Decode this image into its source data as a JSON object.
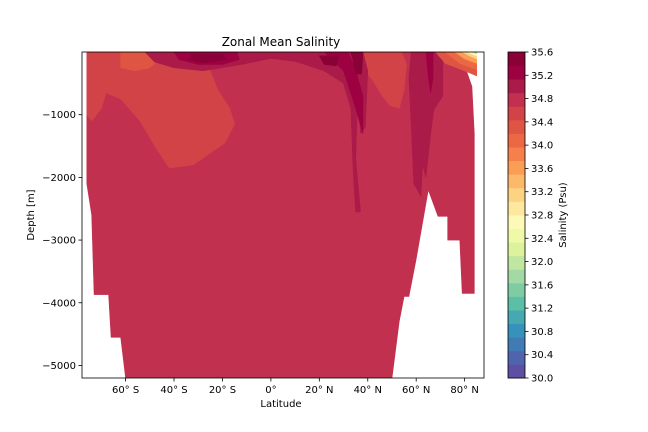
{
  "chart_data": {
    "type": "heatmap",
    "title": "Zonal Mean Salinity",
    "xlabel": "Latitude",
    "ylabel": "Depth [m]",
    "xlim": [
      -78,
      88
    ],
    "ylim": [
      -5200,
      0
    ],
    "x_ticks": [
      {
        "value": -60,
        "label": "60° S"
      },
      {
        "value": -40,
        "label": "40° S"
      },
      {
        "value": -20,
        "label": "20° S"
      },
      {
        "value": 0,
        "label": "0°"
      },
      {
        "value": 20,
        "label": "20° N"
      },
      {
        "value": 40,
        "label": "40° N"
      },
      {
        "value": 60,
        "label": "60° N"
      },
      {
        "value": 80,
        "label": "80° N"
      }
    ],
    "y_ticks": [
      {
        "value": -1000,
        "label": "−1000"
      },
      {
        "value": -2000,
        "label": "−2000"
      },
      {
        "value": -3000,
        "label": "−3000"
      },
      {
        "value": -4000,
        "label": "−4000"
      },
      {
        "value": -5000,
        "label": "−5000"
      }
    ],
    "colorbar": {
      "label": "Salinity (Psu)",
      "min": 30.0,
      "max": 35.6,
      "step": 0.2,
      "tick_labels": [
        "30.0",
        "30.4",
        "30.8",
        "31.2",
        "31.6",
        "32.0",
        "32.4",
        "32.8",
        "33.2",
        "33.6",
        "34.0",
        "34.4",
        "34.8",
        "35.2",
        "35.6"
      ],
      "colors": [
        "#5e4fa2",
        "#4f64ad",
        "#417bb6",
        "#3692bb",
        "#46a8b0",
        "#5cbea6",
        "#7fcba4",
        "#a3d9a4",
        "#c0e6a0",
        "#dcf29d",
        "#f0f9a8",
        "#fdf9b6",
        "#fee8a0",
        "#fed283",
        "#fdb96a",
        "#fb9e55",
        "#f6804c",
        "#ec6845",
        "#df5543",
        "#d24348",
        "#c1304e",
        "#aa1b4a",
        "#9e0142",
        "#8a0138"
      ]
    },
    "fields": [
      {
        "salinity": 34.75,
        "points": [
          [
            -76,
            0
          ],
          [
            78,
            0
          ],
          [
            83,
            -550
          ],
          [
            84,
            -1300
          ],
          [
            84,
            -3850
          ],
          [
            79,
            -3850
          ],
          [
            78,
            -3000
          ],
          [
            73,
            -3000
          ],
          [
            73,
            -2620
          ],
          [
            69,
            -2620
          ],
          [
            65,
            -2200
          ],
          [
            60,
            -3300
          ],
          [
            57,
            -3900
          ],
          [
            55,
            -3900
          ],
          [
            53,
            -4300
          ],
          [
            50,
            -5200
          ],
          [
            -60,
            -5200
          ],
          [
            -62,
            -4550
          ],
          [
            -66,
            -4550
          ],
          [
            -67,
            -3870
          ],
          [
            -73,
            -3870
          ],
          [
            -74,
            -2600
          ],
          [
            -76,
            -2100
          ]
        ]
      },
      {
        "salinity": 34.55,
        "points": [
          [
            -76,
            0
          ],
          [
            -28,
            0
          ],
          [
            -22,
            -600
          ],
          [
            -17,
            -900
          ],
          [
            -15,
            -1150
          ],
          [
            -19,
            -1450
          ],
          [
            -32,
            -1800
          ],
          [
            -42,
            -1850
          ],
          [
            -48,
            -1500
          ],
          [
            -54,
            -1100
          ],
          [
            -62,
            -750
          ],
          [
            -68,
            -650
          ],
          [
            -70,
            -900
          ],
          [
            -74,
            -1100
          ],
          [
            -76,
            -1000
          ]
        ]
      },
      {
        "salinity": 34.55,
        "points": [
          [
            18,
            0
          ],
          [
            54,
            0
          ],
          [
            56,
            -200
          ],
          [
            55,
            -600
          ],
          [
            53,
            -900
          ],
          [
            49,
            -850
          ],
          [
            46,
            -700
          ],
          [
            42,
            -450
          ],
          [
            38,
            -250
          ],
          [
            30,
            -220
          ],
          [
            22,
            -80
          ]
        ]
      },
      {
        "salinity": 34.45,
        "points": [
          [
            -62,
            -230
          ],
          [
            -58,
            -180
          ],
          [
            -50,
            -220
          ],
          [
            -46,
            -400
          ],
          [
            -51,
            -600
          ],
          [
            -58,
            -600
          ],
          [
            -63,
            -450
          ]
        ]
      },
      {
        "salinity": 34.45,
        "points": [
          [
            47,
            0
          ],
          [
            54,
            0
          ],
          [
            55,
            -250
          ],
          [
            53,
            -600
          ],
          [
            50,
            -500
          ],
          [
            48,
            -250
          ]
        ]
      },
      {
        "salinity": 34.35,
        "points": [
          [
            -62,
            0
          ],
          [
            -48,
            0
          ],
          [
            -47,
            -150
          ],
          [
            -50,
            -250
          ],
          [
            -56,
            -300
          ],
          [
            -62,
            -250
          ]
        ]
      },
      {
        "salinity": 34.95,
        "points": [
          [
            -52,
            0
          ],
          [
            20,
            0
          ],
          [
            28,
            -120
          ],
          [
            34,
            -250
          ],
          [
            36,
            -500
          ],
          [
            35,
            -1700
          ],
          [
            37,
            -2550
          ],
          [
            35,
            -2550
          ],
          [
            34,
            -1900
          ],
          [
            33,
            -900
          ],
          [
            30,
            -500
          ],
          [
            22,
            -300
          ],
          [
            10,
            -150
          ],
          [
            0,
            -100
          ],
          [
            -12,
            -200
          ],
          [
            -28,
            -300
          ],
          [
            -40,
            -250
          ],
          [
            -48,
            -160
          ]
        ]
      },
      {
        "salinity": 34.95,
        "points": [
          [
            58,
            0
          ],
          [
            71,
            0
          ],
          [
            71,
            -700
          ],
          [
            66,
            -1000
          ],
          [
            63,
            -1500
          ],
          [
            62,
            -2300
          ],
          [
            59,
            -2100
          ],
          [
            58,
            -1200
          ],
          [
            57,
            -400
          ]
        ]
      },
      {
        "salinity": 35.1,
        "points": [
          [
            -44,
            0
          ],
          [
            -8,
            0
          ],
          [
            -5,
            -120
          ],
          [
            -18,
            -230
          ],
          [
            -30,
            -230
          ],
          [
            -40,
            -160
          ]
        ]
      },
      {
        "salinity": 35.1,
        "points": [
          [
            14,
            0
          ],
          [
            38,
            0
          ],
          [
            40,
            -300
          ],
          [
            39,
            -1200
          ],
          [
            37,
            -1300
          ],
          [
            36,
            -700
          ],
          [
            33,
            -350
          ],
          [
            26,
            -260
          ],
          [
            18,
            -120
          ]
        ]
      },
      {
        "salinity": 35.1,
        "points": [
          [
            63,
            0
          ],
          [
            69,
            0
          ],
          [
            68,
            -700
          ],
          [
            66,
            -1300
          ],
          [
            64,
            -2000
          ],
          [
            62,
            -1700
          ],
          [
            63,
            -600
          ]
        ]
      },
      {
        "salinity": 35.3,
        "points": [
          [
            -40,
            0
          ],
          [
            -14,
            0
          ],
          [
            -13,
            -120
          ],
          [
            -20,
            -200
          ],
          [
            -30,
            -200
          ],
          [
            -38,
            -120
          ]
        ]
      },
      {
        "salinity": 35.3,
        "points": [
          [
            22,
            0
          ],
          [
            32,
            0
          ],
          [
            35,
            -300
          ],
          [
            38,
            -700
          ],
          [
            38,
            -1300
          ],
          [
            35,
            -900
          ],
          [
            30,
            -300
          ]
        ]
      },
      {
        "salinity": 35.3,
        "points": [
          [
            64,
            0
          ],
          [
            67,
            0
          ],
          [
            67,
            -400
          ],
          [
            66,
            -650
          ],
          [
            65,
            -400
          ]
        ]
      },
      {
        "salinity": 35.5,
        "points": [
          [
            -33,
            -40
          ],
          [
            -20,
            -40
          ],
          [
            -18,
            -120
          ],
          [
            -28,
            -170
          ],
          [
            -34,
            -120
          ]
        ]
      },
      {
        "salinity": 35.5,
        "points": [
          [
            33,
            0
          ],
          [
            38,
            0
          ],
          [
            37.5,
            -350
          ],
          [
            35,
            -350
          ],
          [
            34,
            -150
          ]
        ]
      },
      {
        "salinity": 35.5,
        "points": [
          [
            20,
            -60
          ],
          [
            28,
            -60
          ],
          [
            27,
            -220
          ],
          [
            22,
            -200
          ]
        ]
      }
    ],
    "surface_gradient": [
      {
        "salinity": 34.35,
        "points": [
          [
            68,
            0
          ],
          [
            85,
            0
          ],
          [
            85,
            -380
          ],
          [
            80,
            -300
          ],
          [
            72,
            -180
          ]
        ]
      },
      {
        "salinity": 34.0,
        "points": [
          [
            72,
            0
          ],
          [
            85,
            0
          ],
          [
            85,
            -280
          ],
          [
            78,
            -180
          ]
        ]
      },
      {
        "salinity": 33.6,
        "points": [
          [
            76,
            0
          ],
          [
            85,
            0
          ],
          [
            85,
            -180
          ],
          [
            80,
            -110
          ]
        ]
      },
      {
        "salinity": 33.2,
        "points": [
          [
            79,
            0
          ],
          [
            85,
            0
          ],
          [
            85,
            -110
          ],
          [
            82,
            -60
          ]
        ]
      },
      {
        "salinity": 32.6,
        "points": [
          [
            81,
            0
          ],
          [
            85,
            0
          ],
          [
            85,
            -60
          ]
        ]
      },
      {
        "salinity": 31.8,
        "points": [
          [
            83,
            0
          ],
          [
            85,
            0
          ],
          [
            85,
            -25
          ]
        ]
      }
    ]
  }
}
